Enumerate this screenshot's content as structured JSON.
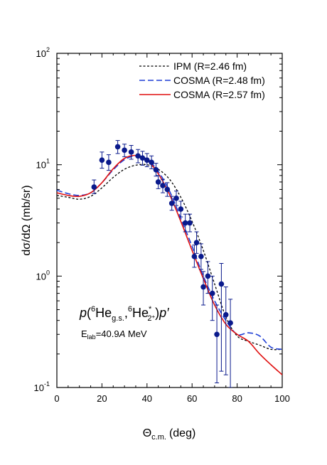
{
  "chart_data": {
    "type": "line",
    "yscale": "log",
    "xlim": [
      0,
      100
    ],
    "ylim": [
      0.1,
      100
    ],
    "xlabel": {
      "main": "Θ",
      "sub": "c.m.",
      "unit": "(deg)"
    },
    "ylabel": "dσ/dΩ (mb/sr)",
    "x_ticks": [
      "0",
      "20",
      "40",
      "60",
      "80",
      "100"
    ],
    "y_ticks": [
      {
        "base": "10",
        "exp": "-1",
        "value": 0.1
      },
      {
        "base": "10",
        "exp": "0",
        "value": 1
      },
      {
        "base": "10",
        "exp": "1",
        "value": 10
      },
      {
        "base": "10",
        "exp": "2",
        "value": 100
      }
    ],
    "legend_position": "top-right",
    "series": [
      {
        "name": "IPM (R=2.46 fm)",
        "color": "#000000",
        "dash": "short-dash",
        "x": [
          0,
          5,
          10,
          15,
          20,
          25,
          30,
          35,
          40,
          45,
          50,
          55,
          60,
          65,
          70,
          75,
          80,
          85,
          90,
          95,
          100
        ],
        "y": [
          5.3,
          5.1,
          4.9,
          5.2,
          6.2,
          7.7,
          9.1,
          9.9,
          10.0,
          9.1,
          7.4,
          5.1,
          3.1,
          1.7,
          0.85,
          0.43,
          0.29,
          0.26,
          0.24,
          0.22,
          0.22
        ]
      },
      {
        "name": "COSMA (R=2.48 fm)",
        "color": "#1f3fd6",
        "dash": "long-dash",
        "x": [
          0,
          5,
          10,
          15,
          20,
          25,
          30,
          35,
          40,
          45,
          50,
          55,
          60,
          65,
          70,
          75,
          80,
          85,
          90,
          95,
          100
        ],
        "y": [
          5.9,
          5.5,
          5.3,
          5.6,
          6.9,
          9.0,
          11.1,
          12.0,
          11.2,
          8.7,
          5.8,
          3.3,
          1.85,
          1.0,
          0.6,
          0.4,
          0.3,
          0.31,
          0.29,
          0.23,
          0.22
        ]
      },
      {
        "name": "COSMA (R=2.57 fm)",
        "color": "#e01010",
        "dash": "solid",
        "x": [
          0,
          5,
          10,
          15,
          20,
          25,
          30,
          35,
          40,
          45,
          50,
          55,
          60,
          65,
          70,
          75,
          80,
          85,
          90,
          95,
          100
        ],
        "y": [
          5.6,
          5.3,
          5.2,
          5.6,
          6.9,
          9.2,
          11.4,
          12.1,
          11.0,
          8.3,
          5.4,
          3.1,
          1.7,
          0.95,
          0.55,
          0.37,
          0.3,
          0.26,
          0.2,
          0.16,
          0.13
        ]
      }
    ],
    "data_points": {
      "color": "#0a1a8c",
      "x": [
        16.5,
        20,
        23,
        27,
        30,
        33,
        36,
        38,
        40,
        42,
        44,
        45,
        47,
        49,
        51,
        53,
        55,
        57,
        59,
        61,
        62,
        64,
        65,
        67,
        69,
        71,
        73,
        75,
        77
      ],
      "y": [
        6.3,
        11,
        10.5,
        14.5,
        13.5,
        13,
        12,
        11.5,
        11,
        10.5,
        9.0,
        7.0,
        6.5,
        6.0,
        4.5,
        5.0,
        4.0,
        3.0,
        3.0,
        1.5,
        2.0,
        1.5,
        0.8,
        1.0,
        0.7,
        0.3,
        0.85,
        0.45,
        0.38
      ],
      "ylo": [
        5.5,
        9.3,
        8.9,
        12.6,
        11.8,
        11.2,
        10.4,
        9.9,
        9.6,
        9.2,
        7.9,
        6.1,
        5.6,
        5.2,
        3.9,
        4.3,
        3.4,
        2.5,
        2.5,
        1.2,
        1.6,
        1.15,
        0.55,
        0.7,
        0.4,
        0.11,
        0.14,
        0.13,
        0.1
      ],
      "yhi": [
        7.3,
        13,
        12.3,
        16.5,
        15.3,
        14.9,
        13.7,
        13.2,
        12.6,
        12.0,
        10.3,
        8.0,
        7.4,
        6.9,
        5.2,
        5.8,
        4.7,
        3.6,
        3.6,
        1.9,
        2.5,
        1.95,
        1.1,
        1.35,
        1.0,
        0.55,
        1.3,
        0.8,
        0.62
      ]
    },
    "annotation": {
      "p": "p",
      "open": "(",
      "six1": "6",
      "he1": "He",
      "gs": "g.s.",
      "comma": ",",
      "six2": "6",
      "he2": "He",
      "star": "*",
      "twoplus": "2",
      "plus": "+",
      "close": ")",
      "pprime": "p′",
      "elab_E": "E",
      "elab_sub": "lab",
      "elab_eq": "=40.9",
      "elab_A": "A",
      "elab_unit": " MeV"
    }
  }
}
